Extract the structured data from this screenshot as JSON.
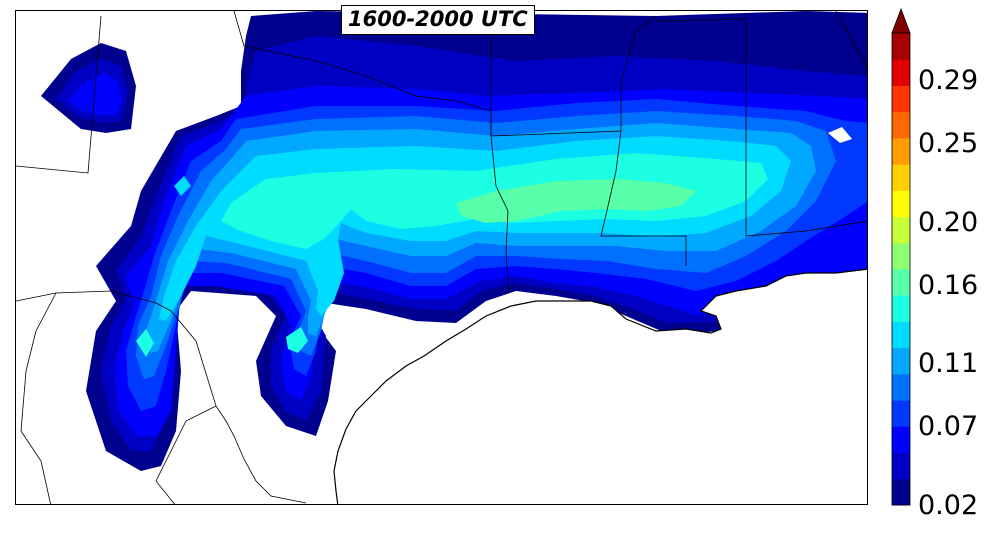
{
  "map": {
    "title": "1600-2000 UTC"
  },
  "colorbar": {
    "ticks": [
      {
        "value": 0.02,
        "label": "0.02"
      },
      {
        "value": 0.07,
        "label": "0.07"
      },
      {
        "value": 0.11,
        "label": "0.11"
      },
      {
        "value": 0.16,
        "label": "0.16"
      },
      {
        "value": 0.2,
        "label": "0.20"
      },
      {
        "value": 0.25,
        "label": "0.25"
      },
      {
        "value": 0.29,
        "label": "0.29"
      }
    ],
    "colors": [
      "#00008f",
      "#0000c4",
      "#0000ff",
      "#0038ff",
      "#0070ff",
      "#00a8ff",
      "#00dcff",
      "#1cffe2",
      "#56ffa8",
      "#8eff70",
      "#c8ff36",
      "#ffff00",
      "#ffd000",
      "#ff9c00",
      "#ff6800",
      "#ff3400",
      "#e00000",
      "#a80000"
    ],
    "extend_color": "#800000",
    "colormap": "jet"
  }
}
